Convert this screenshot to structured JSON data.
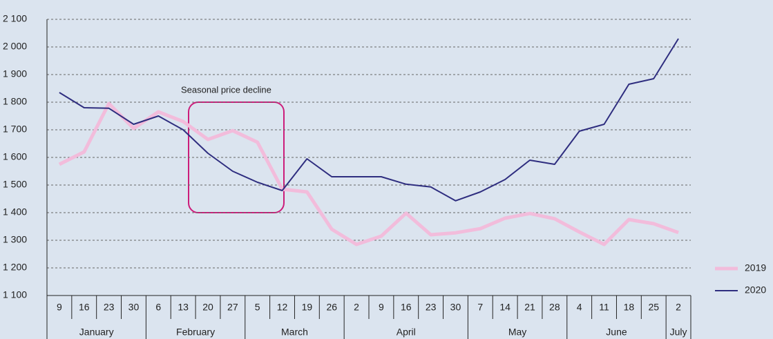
{
  "chart_data": {
    "type": "line",
    "annotation": "Seasonal price decline",
    "month_groups": [
      {
        "label": "January",
        "days": [
          "9",
          "16",
          "23",
          "30"
        ]
      },
      {
        "label": "February",
        "days": [
          "6",
          "13",
          "20",
          "27"
        ]
      },
      {
        "label": "March",
        "days": [
          "5",
          "12",
          "19",
          "26"
        ]
      },
      {
        "label": "April",
        "days": [
          "2",
          "9",
          "16",
          "23",
          "30"
        ]
      },
      {
        "label": "May",
        "days": [
          "7",
          "14",
          "21",
          "28"
        ]
      },
      {
        "label": "June",
        "days": [
          "4",
          "11",
          "18",
          "25"
        ]
      },
      {
        "label": "July",
        "days": [
          "2"
        ]
      }
    ],
    "series": [
      {
        "name": "2019",
        "color": "#f2bcdb",
        "width": 5,
        "values": [
          1575,
          1620,
          1795,
          1705,
          1765,
          1730,
          1665,
          1697,
          1655,
          1485,
          1475,
          1340,
          1285,
          1315,
          1398,
          1320,
          1327,
          1342,
          1380,
          1397,
          1378,
          1330,
          1285,
          1375,
          1360,
          1328
        ]
      },
      {
        "name": "2020",
        "color": "#2e2d7f",
        "width": 2,
        "values": [
          1835,
          1780,
          1778,
          1720,
          1750,
          1700,
          1615,
          1550,
          1510,
          1480,
          1595,
          1530,
          1530,
          1530,
          1503,
          1493,
          1443,
          1475,
          1520,
          1590,
          1575,
          1695,
          1720,
          1865,
          1885,
          2030
        ]
      }
    ],
    "ylim": [
      1100,
      2100
    ],
    "yticks": [
      {
        "value": 1100,
        "label": "1 100"
      },
      {
        "value": 1200,
        "label": "1 200"
      },
      {
        "value": 1300,
        "label": "1 300"
      },
      {
        "value": 1400,
        "label": "1 400"
      },
      {
        "value": 1500,
        "label": "1 500"
      },
      {
        "value": 1600,
        "label": "1 600"
      },
      {
        "value": 1700,
        "label": "1 700"
      },
      {
        "value": 1800,
        "label": "1 800"
      },
      {
        "value": 1900,
        "label": "1 900"
      },
      {
        "value": 2000,
        "label": "2 000"
      },
      {
        "value": 2100,
        "label": "2 100"
      }
    ],
    "grid": true,
    "legend": "bottom-right"
  }
}
